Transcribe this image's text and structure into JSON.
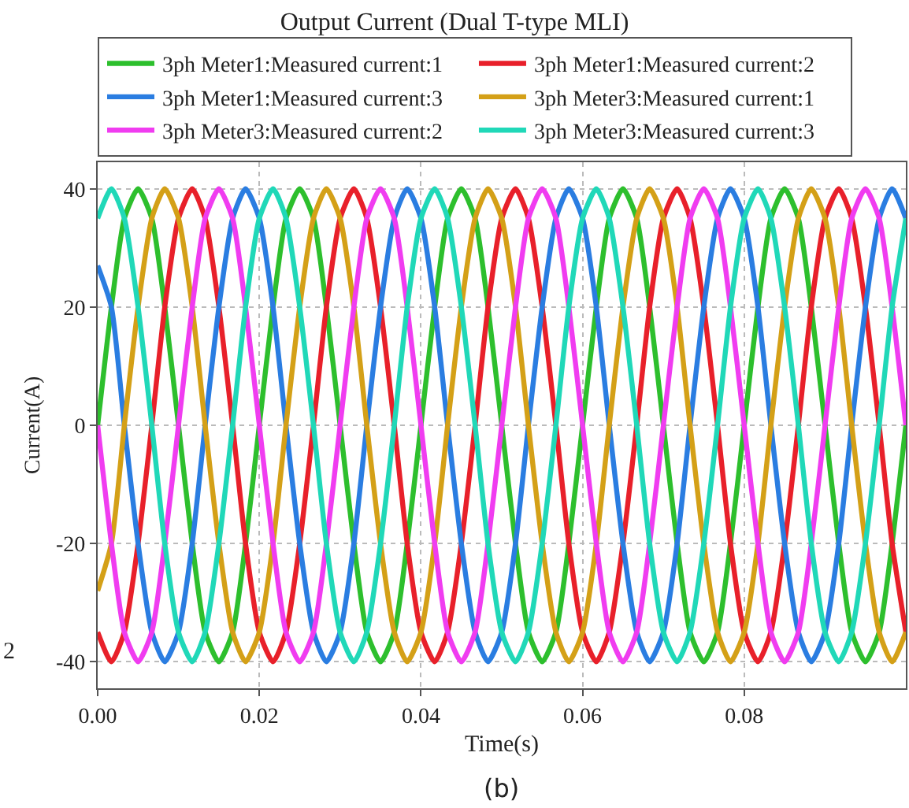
{
  "chart_data": {
    "type": "line",
    "title": "Output Current (Dual T-type MLI)",
    "xlabel": "Time(s)",
    "ylabel": "Current(A)",
    "x": [
      0,
      0.0017,
      0.0033,
      0.005,
      0.0067,
      0.0083,
      0.01,
      0.0117,
      0.0133,
      0.015,
      0.0167,
      0.0183,
      0.02,
      0.0217,
      0.0233,
      0.025,
      0.0267,
      0.0283,
      0.03,
      0.0317,
      0.0333,
      0.035,
      0.0367,
      0.0383,
      0.04,
      0.0417,
      0.0433,
      0.045,
      0.0467,
      0.0483,
      0.05,
      0.0517,
      0.0533,
      0.055,
      0.0567,
      0.0583,
      0.06,
      0.0617,
      0.0633,
      0.065,
      0.0667,
      0.0683,
      0.07,
      0.0717,
      0.0733,
      0.075,
      0.0767,
      0.0783,
      0.08,
      0.0817,
      0.0833,
      0.085,
      0.0867,
      0.0883,
      0.09,
      0.0917,
      0.0933,
      0.095,
      0.0967,
      0.0983,
      0.1
    ],
    "series": [
      {
        "name": "3ph Meter1:Measured current:1",
        "color": "#2dbf2d",
        "values": [
          0,
          20,
          35,
          40,
          35,
          20,
          0,
          -20,
          -35,
          -40,
          -35,
          -20,
          0,
          20,
          35,
          40,
          35,
          20,
          0,
          -20,
          -35,
          -40,
          -35,
          -20,
          0,
          20,
          35,
          40,
          35,
          20,
          0,
          -20,
          -35,
          -40,
          -35,
          -20,
          0,
          20,
          35,
          40,
          35,
          20,
          0,
          -20,
          -35,
          -40,
          -35,
          -20,
          0,
          20,
          35,
          40,
          35,
          20,
          0,
          -20,
          -35,
          -40,
          -35,
          -20,
          0
        ]
      },
      {
        "name": "3ph Meter1:Measured current:2",
        "color": "#e8202a",
        "values": [
          -35,
          -40,
          -35,
          -20,
          0,
          20,
          35,
          40,
          35,
          20,
          0,
          -20,
          -35,
          -40,
          -35,
          -20,
          0,
          20,
          35,
          40,
          35,
          20,
          0,
          -20,
          -35,
          -40,
          -35,
          -20,
          0,
          20,
          35,
          40,
          35,
          20,
          0,
          -20,
          -35,
          -40,
          -35,
          -20,
          0,
          20,
          35,
          40,
          35,
          20,
          0,
          -20,
          -35,
          -40,
          -35,
          -20,
          0,
          20,
          35,
          40,
          35,
          20,
          0,
          -20,
          -35
        ]
      },
      {
        "name": "3ph Meter1:Measured current:3",
        "color": "#2a7de1",
        "values": [
          27,
          20,
          0,
          -20,
          -35,
          -40,
          -35,
          -20,
          0,
          20,
          35,
          40,
          35,
          20,
          0,
          -20,
          -35,
          -40,
          -35,
          -20,
          0,
          20,
          35,
          40,
          35,
          20,
          0,
          -20,
          -35,
          -40,
          -35,
          -20,
          0,
          20,
          35,
          40,
          35,
          20,
          0,
          -20,
          -35,
          -40,
          -35,
          -20,
          0,
          20,
          35,
          40,
          35,
          20,
          0,
          -20,
          -35,
          -40,
          -35,
          -20,
          0,
          20,
          35,
          40,
          35
        ]
      },
      {
        "name": "3ph Meter3:Measured current:1",
        "color": "#d4a017",
        "values": [
          -28,
          -20,
          0,
          20,
          35,
          40,
          35,
          20,
          0,
          -20,
          -35,
          -40,
          -35,
          -20,
          0,
          20,
          35,
          40,
          35,
          20,
          0,
          -20,
          -35,
          -40,
          -35,
          -20,
          0,
          20,
          35,
          40,
          35,
          20,
          0,
          -20,
          -35,
          -40,
          -35,
          -20,
          0,
          20,
          35,
          40,
          35,
          20,
          0,
          -20,
          -35,
          -40,
          -35,
          -20,
          0,
          20,
          35,
          40,
          35,
          20,
          0,
          -20,
          -35,
          -40,
          -35
        ]
      },
      {
        "name": "3ph Meter3:Measured current:2",
        "color": "#f03cf0",
        "values": [
          0,
          -20,
          -35,
          -40,
          -35,
          -20,
          0,
          20,
          35,
          40,
          35,
          20,
          0,
          -20,
          -35,
          -40,
          -35,
          -20,
          0,
          20,
          35,
          40,
          35,
          20,
          0,
          -20,
          -35,
          -40,
          -35,
          -20,
          0,
          20,
          35,
          40,
          35,
          20,
          0,
          -20,
          -35,
          -40,
          -35,
          -20,
          0,
          20,
          35,
          40,
          35,
          20,
          0,
          -20,
          -35,
          -40,
          -35,
          -20,
          0,
          20,
          35,
          40,
          35,
          20,
          0
        ]
      },
      {
        "name": "3ph Meter3:Measured current:3",
        "color": "#20d8b8",
        "values": [
          35,
          40,
          35,
          20,
          0,
          -20,
          -35,
          -40,
          -35,
          -20,
          0,
          20,
          35,
          40,
          35,
          20,
          0,
          -20,
          -35,
          -40,
          -35,
          -20,
          0,
          20,
          35,
          40,
          35,
          20,
          0,
          -20,
          -35,
          -40,
          -35,
          -20,
          0,
          20,
          35,
          40,
          35,
          20,
          0,
          -20,
          -35,
          -40,
          -35,
          -20,
          0,
          20,
          35,
          40,
          35,
          20,
          0,
          -20,
          -35,
          -40,
          -35,
          -20,
          0,
          20,
          35
        ]
      }
    ],
    "xlim": [
      0,
      0.1
    ],
    "ylim": [
      -44.5,
      44.5
    ],
    "xticks": [
      {
        "value": 0,
        "label": "0.00"
      },
      {
        "value": 0.02,
        "label": "0.02"
      },
      {
        "value": 0.04,
        "label": "0.04"
      },
      {
        "value": 0.06,
        "label": "0.06"
      },
      {
        "value": 0.08,
        "label": "0.08"
      }
    ],
    "yticks": [
      -40,
      -20,
      0,
      20,
      40
    ],
    "grid": true,
    "legend": "top",
    "line_style": "solid",
    "marker": "none",
    "annotations": [
      "(b)",
      "2"
    ]
  }
}
